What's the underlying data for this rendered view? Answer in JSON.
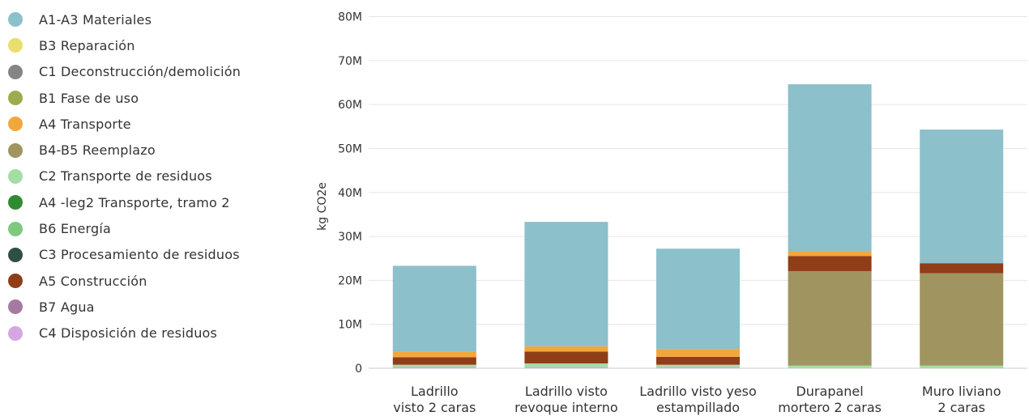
{
  "chart_data": {
    "type": "bar",
    "stacked": true,
    "ylabel": "kg CO2e",
    "ylim": [
      0,
      80000000
    ],
    "y_ticks": [
      "0",
      "10M",
      "20M",
      "30M",
      "40M",
      "50M",
      "60M",
      "70M",
      "80M"
    ],
    "grid": true,
    "legend_position": "left",
    "categories": [
      [
        "Ladrillo",
        "visto 2 caras"
      ],
      [
        "Ladrillo visto",
        "revoque interno"
      ],
      [
        "Ladrillo visto yeso",
        "estampillado"
      ],
      [
        "Durapanel",
        "mortero 2 caras"
      ],
      [
        "Muro liviano",
        "2 caras"
      ]
    ],
    "legend": [
      {
        "name": "A1-A3 Materiales",
        "color": "#8cc0ca"
      },
      {
        "name": "B3 Reparación",
        "color": "#e8df6e"
      },
      {
        "name": "C1 Deconstrucción/demolición",
        "color": "#858585"
      },
      {
        "name": "B1 Fase de uso",
        "color": "#9aad4e"
      },
      {
        "name": "A4 Transporte",
        "color": "#f2a73d"
      },
      {
        "name": "B4-B5 Reemplazo",
        "color": "#a09560"
      },
      {
        "name": "C2 Transporte de residuos",
        "color": "#a3dea5"
      },
      {
        "name": "A4 -leg2 Transporte, tramo 2",
        "color": "#2f8b2f"
      },
      {
        "name": "B6 Energía",
        "color": "#7ec97f"
      },
      {
        "name": "C3 Procesamiento de residuos",
        "color": "#2e4f45"
      },
      {
        "name": "A5 Construcción",
        "color": "#8f3e18"
      },
      {
        "name": "B7 Agua",
        "color": "#a57aa0"
      },
      {
        "name": "C4 Disposición de residuos",
        "color": "#d5a6e2"
      }
    ],
    "series": [
      {
        "name": "C4 Disposición de residuos",
        "color": "#d5a6e2",
        "values": [
          300000,
          300000,
          300000,
          0,
          0
        ]
      },
      {
        "name": "C2 Transporte de residuos",
        "color": "#a3dea5",
        "values": [
          500000,
          800000,
          500000,
          600000,
          600000
        ]
      },
      {
        "name": "B4-B5 Reemplazo",
        "color": "#a09560",
        "values": [
          0,
          0,
          0,
          21500000,
          21000000
        ]
      },
      {
        "name": "A5 Construcción",
        "color": "#8f3e18",
        "values": [
          1700000,
          2700000,
          1800000,
          3400000,
          2300000
        ]
      },
      {
        "name": "A4 Transporte",
        "color": "#f2a73d",
        "values": [
          1300000,
          1200000,
          1800000,
          1100000,
          0
        ]
      },
      {
        "name": "A1-A3 Materiales",
        "color": "#8cc0ca",
        "values": [
          19500000,
          28300000,
          22800000,
          38000000,
          30400000
        ]
      }
    ]
  }
}
